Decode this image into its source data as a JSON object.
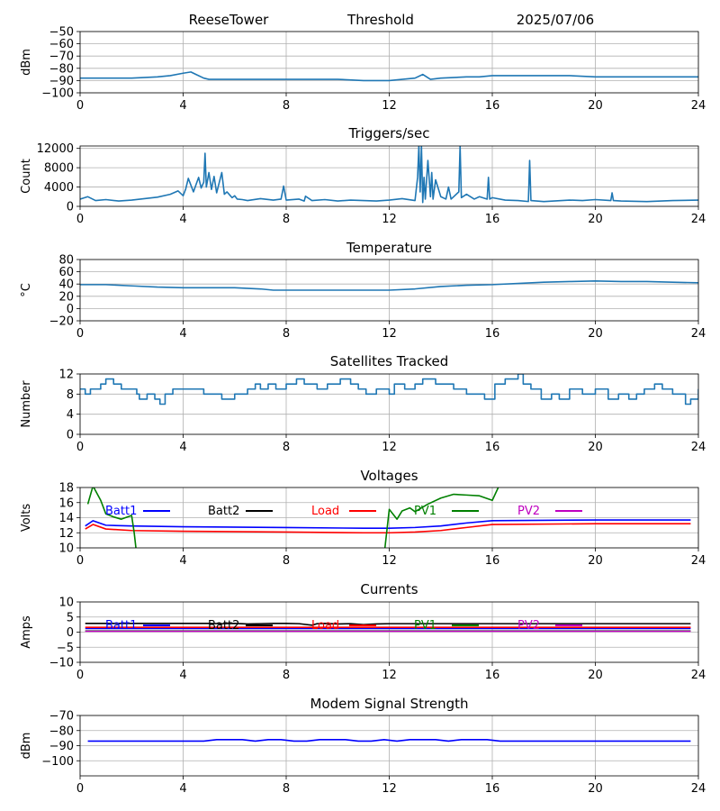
{
  "header": {
    "site": "ReeseTower",
    "mode": "Threshold",
    "date": "2025/07/06"
  },
  "colors": {
    "default": "#1f77b4",
    "Batt1": "#0000ff",
    "Batt2": "#000000",
    "Load": "#ff0000",
    "PV1": "#008000",
    "PV2": "#bf00bf",
    "modem": "#0000ff"
  },
  "chart_data": [
    {
      "id": "threshold",
      "type": "line",
      "title": "",
      "xlabel": "",
      "ylabel": "dBm",
      "xlim": [
        0,
        24
      ],
      "ylim": [
        -100,
        -50
      ],
      "xticks": [
        0,
        4,
        8,
        12,
        16,
        20,
        24
      ],
      "yticks": [
        -100,
        -90,
        -80,
        -70,
        -60,
        -50
      ],
      "grid": true,
      "series": [
        {
          "color_key": "default",
          "x": [
            0,
            1,
            2,
            3,
            3.5,
            4,
            4.3,
            4.5,
            4.8,
            5,
            6,
            7,
            8,
            9,
            10,
            11,
            12,
            12.5,
            13,
            13.3,
            13.6,
            14,
            15,
            15.5,
            16,
            17,
            18,
            19,
            20,
            21,
            22,
            23,
            24
          ],
          "y": [
            -88,
            -88,
            -88,
            -87,
            -86,
            -84,
            -83,
            -85,
            -88,
            -89,
            -89,
            -89,
            -89,
            -89,
            -89,
            -90,
            -90,
            -89,
            -88,
            -85,
            -89,
            -88,
            -87,
            -87,
            -86,
            -86,
            -86,
            -86,
            -87,
            -87,
            -87,
            -87,
            -87
          ]
        }
      ]
    },
    {
      "id": "triggers",
      "type": "line",
      "title": "Triggers/sec",
      "xlabel": "",
      "ylabel": "Count",
      "xlim": [
        0,
        24
      ],
      "ylim": [
        0,
        12500
      ],
      "xticks": [
        0,
        4,
        8,
        12,
        16,
        20,
        24
      ],
      "yticks": [
        0,
        4000,
        8000,
        12000
      ],
      "grid": true,
      "series": [
        {
          "color_key": "default",
          "x": [
            0,
            0.3,
            0.6,
            1,
            1.5,
            2,
            2.5,
            3,
            3.5,
            3.8,
            4,
            4.1,
            4.2,
            4.4,
            4.5,
            4.6,
            4.7,
            4.8,
            4.85,
            4.9,
            5,
            5.1,
            5.2,
            5.3,
            5.5,
            5.6,
            5.7,
            5.9,
            6,
            6.1,
            6.3,
            6.5,
            7,
            7.5,
            7.8,
            7.9,
            8,
            8.5,
            8.7,
            8.75,
            9,
            9.5,
            10,
            10.5,
            11,
            11.5,
            12,
            12.5,
            13,
            13.1,
            13.15,
            13.2,
            13.25,
            13.3,
            13.35,
            13.4,
            13.5,
            13.6,
            13.65,
            13.7,
            13.8,
            14,
            14.2,
            14.3,
            14.4,
            14.5,
            14.7,
            14.75,
            14.8,
            15,
            15.3,
            15.5,
            15.8,
            15.85,
            15.9,
            16,
            16.5,
            17,
            17.4,
            17.45,
            17.5,
            18,
            19,
            19.5,
            20,
            20.6,
            20.65,
            20.7,
            21,
            22,
            23,
            24
          ],
          "y": [
            1500,
            2000,
            1200,
            1400,
            1100,
            1300,
            1600,
            1900,
            2500,
            3200,
            2200,
            3600,
            5800,
            3000,
            4500,
            6000,
            3800,
            5000,
            11000,
            4000,
            7000,
            3500,
            6200,
            2800,
            7000,
            2500,
            3000,
            1800,
            2200,
            1500,
            1400,
            1200,
            1600,
            1300,
            1500,
            4200,
            1300,
            1500,
            1100,
            2100,
            1200,
            1400,
            1100,
            1300,
            1200,
            1100,
            1300,
            1600,
            1200,
            6000,
            12500,
            3000,
            12500,
            800,
            6000,
            1500,
            9500,
            2000,
            7000,
            1500,
            5500,
            2000,
            1500,
            4000,
            1500,
            2000,
            3000,
            12500,
            1800,
            2500,
            1500,
            2000,
            1500,
            6000,
            1500,
            1800,
            1300,
            1200,
            1000,
            9500,
            1200,
            1000,
            1300,
            1200,
            1400,
            1200,
            2800,
            1200,
            1100,
            1000,
            1200,
            1300
          ]
        }
      ]
    },
    {
      "id": "temperature",
      "type": "line",
      "title": "Temperature",
      "xlabel": "",
      "ylabel": "°C",
      "xlim": [
        0,
        24
      ],
      "ylim": [
        -20,
        80
      ],
      "xticks": [
        0,
        4,
        8,
        12,
        16,
        20,
        24
      ],
      "yticks": [
        -20,
        0,
        20,
        40,
        60,
        80
      ],
      "grid": true,
      "series": [
        {
          "color_key": "default",
          "x": [
            0,
            1,
            2,
            3,
            4,
            5,
            6,
            7,
            7.5,
            8,
            9,
            10,
            11,
            12,
            13,
            14,
            15,
            16,
            17,
            18,
            19,
            20,
            21,
            22,
            23,
            24
          ],
          "y": [
            39,
            39,
            37,
            35,
            34,
            34,
            34,
            32,
            30,
            30,
            30,
            30,
            30,
            30,
            32,
            36,
            38,
            39,
            41,
            43,
            44,
            45,
            44,
            44,
            43,
            42
          ]
        }
      ]
    },
    {
      "id": "satellites",
      "type": "line",
      "title": "Satellites Tracked",
      "xlabel": "",
      "ylabel": "Number",
      "xlim": [
        0,
        24
      ],
      "ylim": [
        0,
        12
      ],
      "xticks": [
        0,
        4,
        8,
        12,
        16,
        20,
        24
      ],
      "yticks": [
        0,
        4,
        8,
        12
      ],
      "grid": true,
      "step": true,
      "series": [
        {
          "color_key": "default",
          "x": [
            0,
            0.2,
            0.4,
            0.8,
            1,
            1.3,
            1.6,
            2.2,
            2.3,
            2.6,
            2.9,
            3.1,
            3.3,
            3.6,
            4.2,
            4.8,
            5.5,
            6,
            6.5,
            6.8,
            7,
            7.3,
            7.6,
            8,
            8.4,
            8.7,
            9.2,
            9.6,
            10.1,
            10.5,
            10.8,
            11.1,
            11.5,
            12,
            12.2,
            12.6,
            13,
            13.3,
            13.8,
            14.5,
            15,
            15.7,
            16.1,
            16.5,
            17,
            17.2,
            17.5,
            17.9,
            18.3,
            18.6,
            19,
            19.5,
            20,
            20.5,
            20.9,
            21.3,
            21.6,
            21.9,
            22.3,
            22.6,
            23,
            23.5,
            23.7,
            24
          ],
          "y": [
            9,
            8,
            9,
            10,
            11,
            10,
            9,
            8,
            7,
            8,
            7,
            6,
            8,
            9,
            9,
            8,
            7,
            8,
            9,
            10,
            9,
            10,
            9,
            10,
            11,
            10,
            9,
            10,
            11,
            10,
            9,
            8,
            9,
            8,
            10,
            9,
            10,
            11,
            10,
            9,
            8,
            7,
            10,
            11,
            12,
            10,
            9,
            7,
            8,
            7,
            9,
            8,
            9,
            7,
            8,
            7,
            8,
            9,
            10,
            9,
            8,
            6,
            7,
            9
          ]
        }
      ]
    },
    {
      "id": "voltages",
      "type": "line",
      "title": "Voltages",
      "xlabel": "",
      "ylabel": "Volts",
      "xlim": [
        0,
        24
      ],
      "ylim": [
        10,
        18
      ],
      "xticks": [
        0,
        4,
        8,
        12,
        16,
        20,
        24
      ],
      "yticks": [
        10,
        12,
        14,
        16,
        18
      ],
      "grid": true,
      "legend": "top, single row",
      "series": [
        {
          "name": "Batt1",
          "color_key": "Batt1",
          "x": [
            0.2,
            0.5,
            1,
            2,
            4,
            8,
            11,
            12,
            13,
            14,
            15,
            16,
            20,
            23.7
          ],
          "y": [
            12.9,
            13.6,
            13,
            12.9,
            12.8,
            12.7,
            12.6,
            12.6,
            12.7,
            12.9,
            13.3,
            13.6,
            13.7,
            13.7
          ]
        },
        {
          "name": "Batt2",
          "color_key": "Batt2",
          "x": [],
          "y": []
        },
        {
          "name": "Load",
          "color_key": "Load",
          "x": [
            0.2,
            0.5,
            1,
            2,
            4,
            8,
            11,
            12,
            13,
            14,
            15,
            16,
            20,
            23.7
          ],
          "y": [
            12.5,
            13.1,
            12.5,
            12.3,
            12.2,
            12.1,
            12,
            12,
            12.1,
            12.3,
            12.7,
            13.1,
            13.2,
            13.2
          ]
        },
        {
          "name": "PV1",
          "color_key": "PV1",
          "x": [
            0.3,
            0.5,
            0.8,
            1,
            1.3,
            1.6,
            2,
            2.1,
            2.2,
            11.8,
            12,
            12.3,
            12.5,
            12.8,
            13,
            13.5,
            14,
            14.5,
            15,
            15.5,
            16,
            16.3
          ],
          "y": [
            15.8,
            18.2,
            16.3,
            14.5,
            14.1,
            13.8,
            14.3,
            12,
            9,
            9,
            15.1,
            13.8,
            14.9,
            15.3,
            14.8,
            15.8,
            16.6,
            17.1,
            17,
            16.9,
            16.3,
            18.5
          ]
        },
        {
          "name": "PV2",
          "color_key": "PV2",
          "x": [],
          "y": []
        }
      ]
    },
    {
      "id": "currents",
      "type": "line",
      "title": "Currents",
      "xlabel": "",
      "ylabel": "Amps",
      "xlim": [
        0,
        24
      ],
      "ylim": [
        -10,
        10
      ],
      "xticks": [
        0,
        4,
        8,
        12,
        16,
        20,
        24
      ],
      "yticks": [
        -10,
        -5,
        0,
        5,
        10
      ],
      "grid": true,
      "legend": "top, single row",
      "series": [
        {
          "name": "Batt1",
          "color_key": "Batt1",
          "x": [
            0.2,
            23.7
          ],
          "y": [
            1.2,
            1.2
          ]
        },
        {
          "name": "Batt2",
          "color_key": "Batt2",
          "x": [
            0.2,
            5,
            5.5,
            6,
            6.5,
            7,
            7.5,
            8,
            8.5,
            9,
            9.2,
            9.5,
            10,
            10.5,
            11,
            11.5,
            12,
            13,
            14,
            16,
            23.7
          ],
          "y": [
            2.9,
            2.9,
            2.8,
            2.9,
            2.7,
            2.8,
            2.9,
            2.9,
            2.8,
            2.3,
            2.8,
            2.9,
            2.7,
            2.8,
            2.5,
            2.7,
            2.8,
            2.8,
            2.8,
            2.8,
            2.8
          ]
        },
        {
          "name": "Load",
          "color_key": "Load",
          "x": [
            0.2,
            23.7
          ],
          "y": [
            1.6,
            1.6
          ]
        },
        {
          "name": "PV1",
          "color_key": "PV1",
          "x": [
            0.2,
            23.7
          ],
          "y": [
            0.4,
            0.4
          ]
        },
        {
          "name": "PV2",
          "color_key": "PV2",
          "x": [
            0.2,
            23.7
          ],
          "y": [
            0.3,
            0.3
          ]
        }
      ]
    },
    {
      "id": "modem",
      "type": "line",
      "title": "Modem Signal Strength",
      "xlabel": "",
      "ylabel": "dBm",
      "xlim": [
        0,
        24
      ],
      "ylim": [
        -110,
        -70
      ],
      "xticks": [
        0,
        4,
        8,
        12,
        16,
        20,
        24
      ],
      "yticks": [
        -100,
        -90,
        -80,
        -70
      ],
      "grid": true,
      "series": [
        {
          "color_key": "modem",
          "x": [
            0.3,
            4.8,
            5.3,
            6.3,
            6.8,
            7.3,
            7.8,
            8.3,
            8.8,
            9.3,
            10.3,
            10.8,
            11.3,
            11.8,
            12.3,
            12.8,
            13.8,
            14.3,
            14.8,
            15.8,
            16.3,
            23.7
          ],
          "y": [
            -87,
            -87,
            -86,
            -86,
            -87,
            -86,
            -86,
            -87,
            -87,
            -86,
            -86,
            -87,
            -87,
            -86,
            -87,
            -86,
            -86,
            -87,
            -86,
            -86,
            -87,
            -87
          ]
        }
      ]
    }
  ]
}
